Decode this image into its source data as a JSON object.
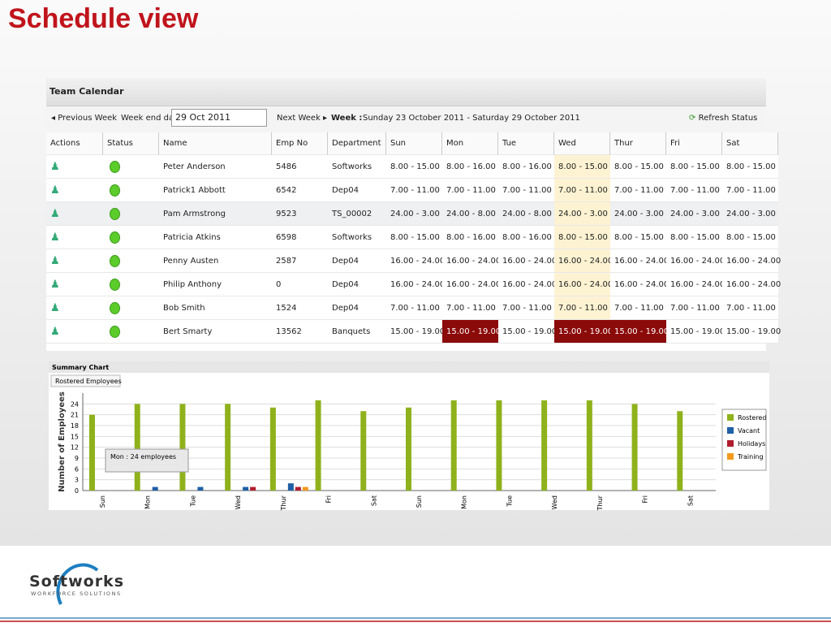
{
  "header": {
    "title": "Schedule view"
  },
  "calendar": {
    "title": "Team Calendar",
    "toolbar": {
      "previous": "Previous Week",
      "week_end_label": "Week end date:",
      "week_end_value": "29 Oct 2011",
      "next": "Next Week",
      "week_label": "Week :",
      "week_range": "Sunday 23 October 2011 - Saturday 29 October 2011",
      "refresh": "Refresh Status"
    },
    "columns": [
      "Actions",
      "Status",
      "Name",
      "Emp No",
      "Department",
      "Sun",
      "Mon",
      "Tue",
      "Wed",
      "Thur",
      "Fri",
      "Sat"
    ],
    "rows": [
      [
        "Peter Anderson",
        "5486",
        "Softworks",
        "8.00 - 15.00",
        "8.00 - 16.00",
        "8.00 - 16.00",
        "8.00 - 15.00",
        "8.00 - 15.00",
        "8.00 - 15.00",
        "8.00 - 15.00"
      ],
      [
        "Patrick1 Abbott",
        "6542",
        "Dep04",
        "7.00 - 11.00",
        "7.00 - 11.00",
        "7.00 - 11.00",
        "7.00 - 11.00",
        "7.00 - 11.00",
        "7.00 - 11.00",
        "7.00 - 11.00"
      ],
      [
        "Pam Armstrong",
        "9523",
        "TS_00002",
        "24.00 - 3.00",
        "24.00 - 8.00",
        "24.00 - 8.00",
        "24.00 - 3.00",
        "24.00 - 3.00",
        "24.00 - 3.00",
        "24.00 - 3.00"
      ],
      [
        "Patricia Atkins",
        "6598",
        "Softworks",
        "8.00 - 15.00",
        "8.00 - 16.00",
        "8.00 - 16.00",
        "8.00 - 15.00",
        "8.00 - 15.00",
        "8.00 - 15.00",
        "8.00 - 15.00"
      ],
      [
        "Penny Austen",
        "2587",
        "Dep04",
        "16.00 - 24.00",
        "16.00 - 24.00",
        "16.00 - 24.00",
        "16.00 - 24.00",
        "16.00 - 24.00",
        "16.00 - 24.00",
        "16.00 - 24.00"
      ],
      [
        "Philip Anthony",
        "0",
        "Dep04",
        "16.00 - 24.00",
        "16.00 - 24.00",
        "16.00 - 24.00",
        "16.00 - 24.00",
        "16.00 - 24.00",
        "16.00 - 24.00",
        "16.00 - 24.00"
      ],
      [
        "Bob Smith",
        "1524",
        "Dep04",
        "7.00 - 11.00",
        "7.00 - 11.00",
        "7.00 - 11.00",
        "7.00 - 11.00",
        "7.00 - 11.00",
        "7.00 - 11.00",
        "7.00 - 11.00"
      ],
      [
        "Bert Smarty",
        "13562",
        "Banquets",
        "15.00 - 19.00",
        "15.00 - 19.00",
        "15.00 - 19.00",
        "15.00 - 19.00",
        "15.00 - 19.00",
        "15.00 - 19.00",
        "15.00 - 19.00"
      ]
    ]
  },
  "summary_chart": {
    "type": "bar",
    "title": "Summary Chart",
    "tab": "Rostered Employees",
    "y_label": "Number of Employees",
    "tooltip": "Mon : 24 employees",
    "categories": [
      "Sun",
      "Mon",
      "Tue",
      "Wed",
      "Thur",
      "Fri",
      "Sat",
      "Sun",
      "Mon",
      "Tue",
      "Wed",
      "Thur",
      "Fri",
      "Sat"
    ],
    "series": [
      {
        "name": "Rostered",
        "color": "#8fb21c",
        "values": [
          21,
          24,
          24,
          24,
          23,
          25,
          22,
          23,
          25,
          25,
          25,
          25,
          24,
          22
        ]
      },
      {
        "name": "Vacant",
        "color": "#1f5fa6",
        "values": [
          0,
          1,
          1,
          1,
          2,
          0,
          0,
          0,
          0,
          0,
          0,
          0,
          0,
          0
        ]
      },
      {
        "name": "Holidays",
        "color": "#b01e2e",
        "values": [
          0,
          0,
          0,
          1,
          1,
          0,
          0,
          0,
          0,
          0,
          0,
          0,
          0,
          0
        ]
      },
      {
        "name": "Training",
        "color": "#f39a1e",
        "values": [
          0,
          0,
          0,
          0,
          1,
          0,
          0,
          0,
          0,
          0,
          0,
          0,
          0,
          0
        ]
      }
    ],
    "ylim": [
      0,
      27
    ],
    "yticks": [
      0,
      3,
      6,
      9,
      12,
      15,
      18,
      21,
      24
    ],
    "grid": true
  },
  "footer": {
    "logo": "Softworks",
    "tagline": "WORKFORCE SOLUTIONS"
  }
}
